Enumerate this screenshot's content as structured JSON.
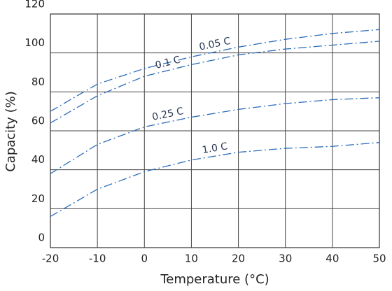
{
  "chart_data": {
    "type": "line",
    "x_label": "Temperature (°C)",
    "y_label": "Capacity (%)",
    "x": [
      -20,
      -10,
      0,
      10,
      20,
      30,
      40,
      50
    ],
    "series": [
      {
        "name": "0.05 C",
        "color": "#2b6cb8",
        "values": [
          70,
          84,
          92,
          98,
          103,
          107,
          110,
          112
        ]
      },
      {
        "name": "0.1 C",
        "color": "#2b6cb8",
        "values": [
          64,
          78,
          88,
          94,
          99,
          102,
          104,
          106
        ]
      },
      {
        "name": "0.25 C",
        "color": "#2b6cb8",
        "values": [
          38,
          53,
          62,
          67,
          71,
          74,
          76,
          77
        ]
      },
      {
        "name": "1.0 C",
        "color": "#2b6cb8",
        "values": [
          16,
          30,
          39,
          45,
          49,
          51,
          52,
          54
        ]
      }
    ],
    "xlim": [
      -20,
      50
    ],
    "xticks": [
      -20,
      -10,
      0,
      10,
      20,
      30,
      40,
      50
    ],
    "ylim": [
      0,
      120
    ],
    "yticks": [
      0,
      20,
      40,
      60,
      80,
      100,
      120
    ],
    "grid": true
  }
}
